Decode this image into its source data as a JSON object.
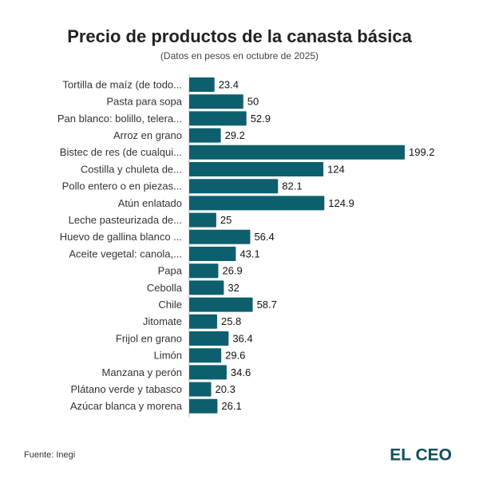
{
  "chart_data": {
    "type": "bar",
    "orientation": "horizontal",
    "title": "Precio de productos de la canasta básica",
    "subtitle": "(Datos en pesos en octubre de 2025)",
    "categories": [
      "Tortilla de maíz (de todo...",
      "Pasta para sopa",
      "Pan blanco: bolillo, telera...",
      "Arroz en grano",
      "Bistec de res (de cualqui...",
      "Costilla y chuleta de...",
      "Pollo entero o en piezas...",
      "Atún enlatado",
      "Leche pasteurizada de...",
      "Huevo de gallina blanco ...",
      "Aceite vegetal: canola,...",
      "Papa",
      "Cebolla",
      "Chile",
      "Jitomate",
      "Frijol en grano",
      "Limón",
      "Manzana y perón",
      "Plátano verde y tabasco",
      "Azúcar blanca y morena"
    ],
    "values": [
      23.4,
      50,
      52.9,
      29.2,
      199.2,
      124,
      82.1,
      124.9,
      25,
      56.4,
      43.1,
      26.9,
      32,
      58.7,
      25.8,
      36.4,
      29.6,
      34.6,
      20.3,
      26.1
    ],
    "color": "#0e5f6e",
    "source": "Fuente: Inegi",
    "brand": "EL CEO"
  }
}
